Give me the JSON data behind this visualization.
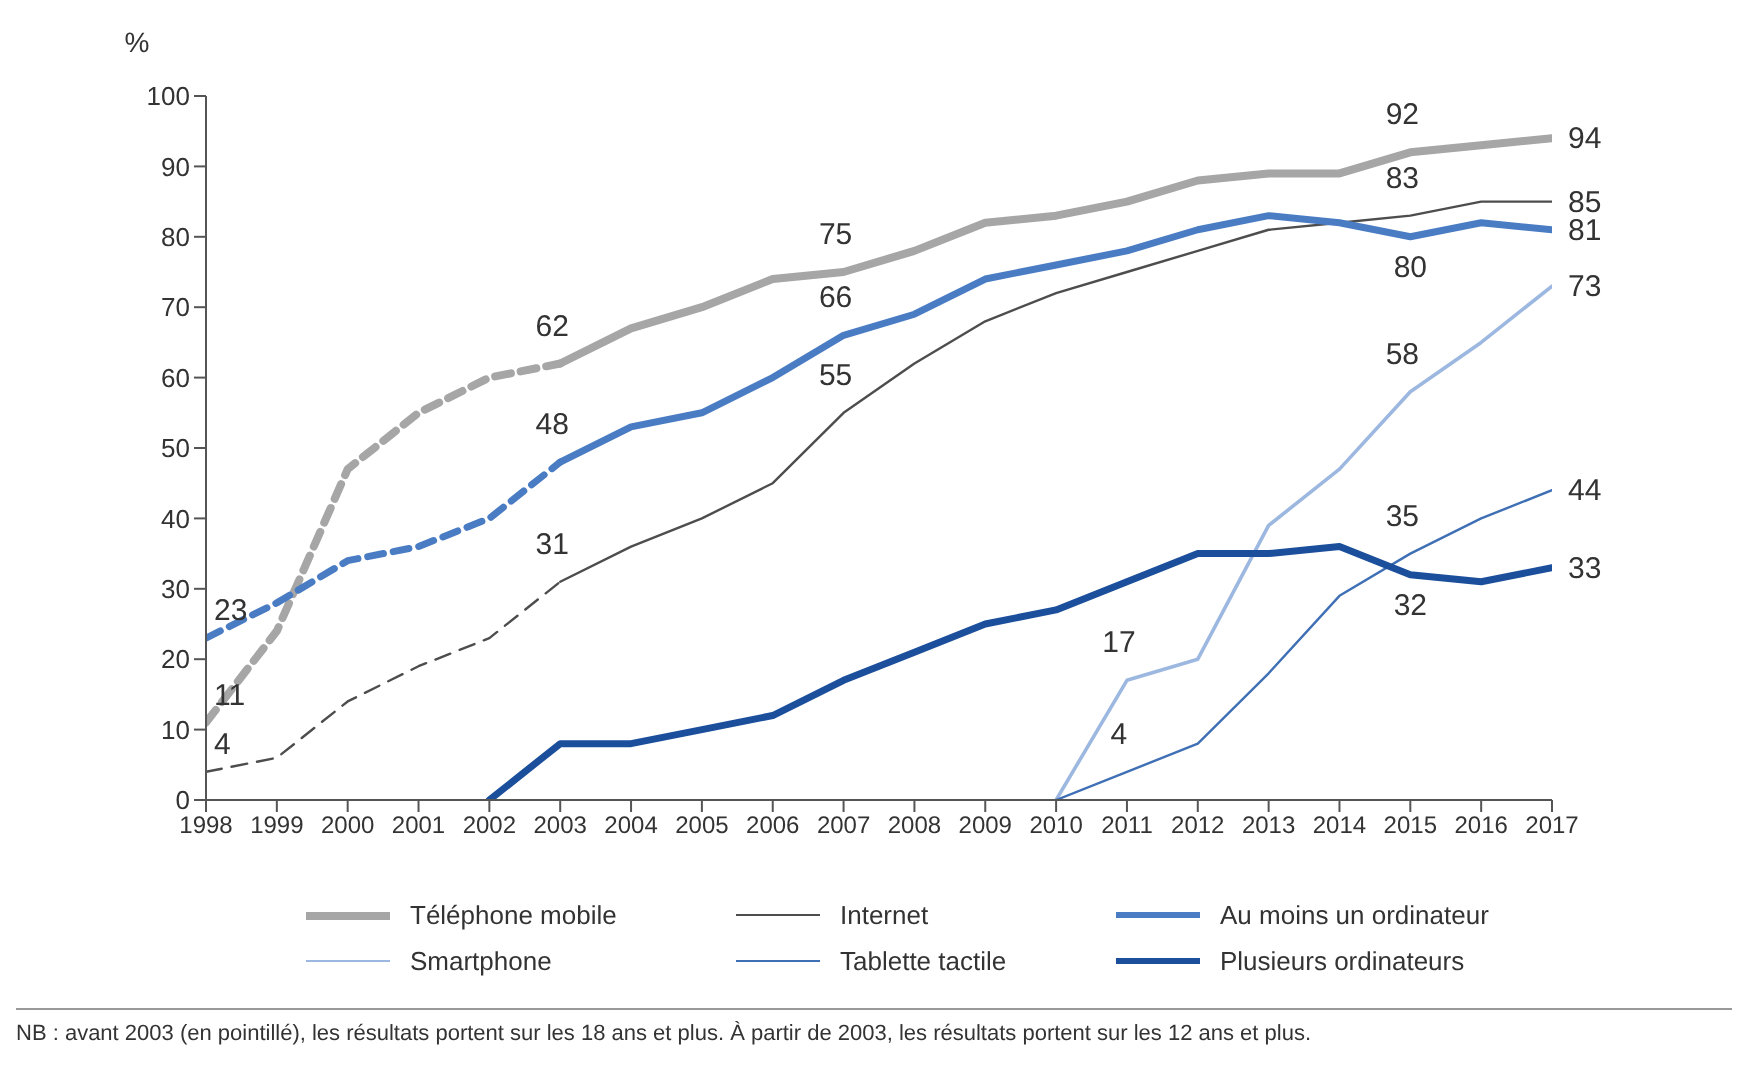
{
  "chart_data": {
    "type": "line",
    "ylabel": "%",
    "xlim": [
      1998,
      2017
    ],
    "xticks": [
      1998,
      1999,
      2000,
      2001,
      2002,
      2003,
      2004,
      2005,
      2006,
      2007,
      2008,
      2009,
      2010,
      2011,
      2012,
      2013,
      2014,
      2015,
      2016,
      2017
    ],
    "ylim": [
      0,
      100
    ],
    "yticks": [
      0,
      10,
      20,
      30,
      40,
      50,
      60,
      70,
      80,
      90,
      100
    ],
    "grid": false,
    "marker": "none",
    "legend": "bottom",
    "annotations": [
      "NB : avant 2003 (en pointillé), les résultats portent sur les 18 ans et plus. À partir de 2003, les résultats portent sur les 12 ans et plus."
    ],
    "series": [
      {
        "name": "Téléphone mobile",
        "color": "#a6a6a6",
        "line_style": "solid",
        "x": [
          2003,
          2004,
          2005,
          2006,
          2007,
          2008,
          2009,
          2010,
          2011,
          2012,
          2013,
          2014,
          2015,
          2016,
          2017
        ],
        "values": [
          62,
          67,
          70,
          74,
          75,
          78,
          82,
          83,
          85,
          88,
          89,
          89,
          92,
          93,
          94
        ],
        "value_labels": [
          "62",
          null,
          null,
          null,
          "75",
          null,
          null,
          null,
          null,
          null,
          null,
          null,
          "92",
          null,
          "94"
        ]
      },
      {
        "name": "Internet",
        "color": "#4d4d4d",
        "line_style": "solid",
        "x": [
          2003,
          2004,
          2005,
          2006,
          2007,
          2008,
          2009,
          2010,
          2011,
          2012,
          2013,
          2014,
          2015,
          2016,
          2017
        ],
        "values": [
          31,
          36,
          40,
          45,
          55,
          62,
          68,
          72,
          75,
          78,
          81,
          82,
          83,
          85,
          85
        ],
        "value_labels": [
          "31",
          null,
          null,
          null,
          "55",
          null,
          null,
          null,
          null,
          null,
          null,
          null,
          "83",
          null,
          "85"
        ]
      },
      {
        "name": "Au moins un ordinateur",
        "color": "#4a7cc4",
        "line_style": "solid",
        "x": [
          2003,
          2004,
          2005,
          2006,
          2007,
          2008,
          2009,
          2010,
          2011,
          2012,
          2013,
          2014,
          2015,
          2016,
          2017
        ],
        "values": [
          48,
          53,
          55,
          60,
          66,
          69,
          74,
          76,
          78,
          81,
          83,
          82,
          80,
          82,
          81
        ],
        "value_labels": [
          "48",
          null,
          null,
          null,
          "66",
          null,
          null,
          null,
          null,
          null,
          null,
          null,
          "80",
          null,
          "81"
        ]
      },
      {
        "name": "Smartphone",
        "color": "#9db8e0",
        "line_style": "solid",
        "x": [
          2010,
          2011,
          2012,
          2013,
          2014,
          2015,
          2016,
          2017
        ],
        "values": [
          0,
          17,
          20,
          39,
          47,
          58,
          65,
          73
        ],
        "value_labels": [
          null,
          "17",
          null,
          null,
          null,
          "58",
          null,
          "73"
        ]
      },
      {
        "name": "Tablette tactile",
        "color": "#3f6fb5",
        "line_style": "solid",
        "x": [
          2010,
          2011,
          2012,
          2013,
          2014,
          2015,
          2016,
          2017
        ],
        "values": [
          0,
          4,
          8,
          18,
          29,
          35,
          40,
          44
        ],
        "value_labels": [
          null,
          "4",
          null,
          null,
          null,
          "35",
          null,
          "44"
        ]
      },
      {
        "name": "Plusieurs ordinateurs",
        "color": "#1b4f9c",
        "line_style": "solid",
        "x": [
          2002,
          2003,
          2004,
          2005,
          2006,
          2007,
          2008,
          2009,
          2010,
          2011,
          2012,
          2013,
          2014,
          2015,
          2016,
          2017
        ],
        "values": [
          0,
          8,
          8,
          10,
          12,
          17,
          21,
          25,
          27,
          31,
          35,
          35,
          36,
          32,
          31,
          33
        ],
        "value_labels": [
          null,
          null,
          null,
          null,
          null,
          null,
          null,
          null,
          null,
          null,
          null,
          null,
          null,
          "32",
          null,
          "33"
        ]
      },
      {
        "color": "#a6a6a6",
        "line_style": "dashed",
        "x": [
          1998,
          1999,
          2000,
          2001,
          2002,
          2003
        ],
        "values": [
          11,
          24,
          47,
          55,
          60,
          62
        ],
        "value_labels": [
          "11",
          null,
          null,
          null,
          null,
          null
        ]
      },
      {
        "color": "#4d4d4d",
        "line_style": "dashed",
        "x": [
          1998,
          1999,
          2000,
          2001,
          2002,
          2003
        ],
        "values": [
          4,
          6,
          14,
          19,
          23,
          31
        ],
        "value_labels": [
          "4",
          null,
          null,
          null,
          null,
          null
        ]
      },
      {
        "color": "#4a7cc4",
        "line_style": "dashed",
        "x": [
          1998,
          1999,
          2000,
          2001,
          2002,
          2003
        ],
        "values": [
          23,
          28,
          34,
          36,
          40,
          48
        ],
        "value_labels": [
          "23",
          null,
          null,
          null,
          null,
          null
        ]
      }
    ]
  }
}
